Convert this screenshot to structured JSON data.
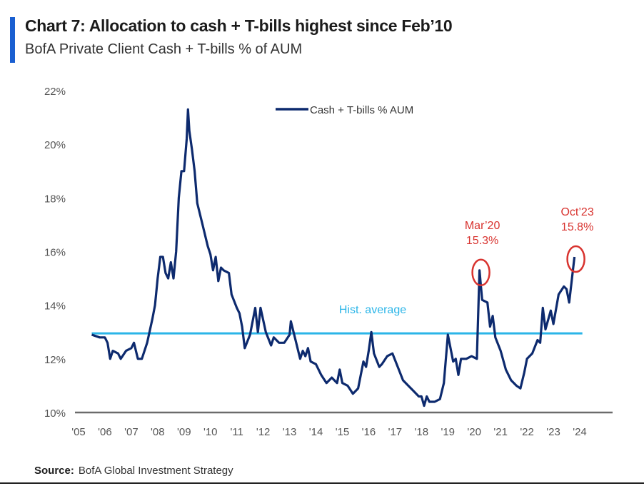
{
  "chart_data": {
    "type": "line",
    "title": "Chart 7: Allocation to cash + T-bills highest since Feb’10",
    "subtitle": "BofA Private Client Cash + T-bills % of AUM",
    "xlabel": "",
    "ylabel": "",
    "xlim": [
      2005,
      2025
    ],
    "ylim": [
      10,
      22
    ],
    "x_ticks": [
      "'05",
      "'06",
      "'07",
      "'08",
      "'09",
      "'10",
      "'11",
      "'12",
      "'13",
      "'14",
      "'15",
      "'16",
      "'17",
      "'18",
      "'19",
      "'20",
      "'21",
      "'22",
      "'23",
      "'24"
    ],
    "y_ticks": [
      "10%",
      "12%",
      "14%",
      "16%",
      "18%",
      "20%",
      "22%"
    ],
    "grid": false,
    "legend_position": "top-center",
    "series": [
      {
        "name": "Cash + T-bills % AUM",
        "color": "#0d2a6e",
        "x": [
          2005.5,
          2005.8,
          2006.0,
          2006.1,
          2006.2,
          2006.3,
          2006.5,
          2006.6,
          2006.8,
          2007.0,
          2007.1,
          2007.25,
          2007.4,
          2007.6,
          2007.8,
          2007.9,
          2008.0,
          2008.1,
          2008.2,
          2008.3,
          2008.4,
          2008.5,
          2008.6,
          2008.7,
          2008.8,
          2008.9,
          2009.0,
          2009.1,
          2009.15,
          2009.2,
          2009.3,
          2009.4,
          2009.5,
          2009.7,
          2009.9,
          2010.0,
          2010.1,
          2010.2,
          2010.3,
          2010.4,
          2010.5,
          2010.7,
          2010.8,
          2011.0,
          2011.1,
          2011.2,
          2011.3,
          2011.5,
          2011.7,
          2011.8,
          2011.9,
          2012.1,
          2012.3,
          2012.4,
          2012.6,
          2012.8,
          2013.0,
          2013.05,
          2013.2,
          2013.4,
          2013.5,
          2013.6,
          2013.7,
          2013.8,
          2014.0,
          2014.2,
          2014.4,
          2014.6,
          2014.8,
          2014.9,
          2015.0,
          2015.2,
          2015.4,
          2015.6,
          2015.8,
          2015.9,
          2016.0,
          2016.1,
          2016.2,
          2016.4,
          2016.5,
          2016.7,
          2016.9,
          2017.1,
          2017.3,
          2017.5,
          2017.7,
          2017.9,
          2018.0,
          2018.1,
          2018.2,
          2018.3,
          2018.5,
          2018.7,
          2018.85,
          2019.0,
          2019.2,
          2019.3,
          2019.4,
          2019.5,
          2019.7,
          2019.9,
          2020.1,
          2020.2,
          2020.3,
          2020.5,
          2020.6,
          2020.7,
          2020.8,
          2021.0,
          2021.2,
          2021.4,
          2021.6,
          2021.75,
          2021.9,
          2022.0,
          2022.2,
          2022.4,
          2022.5,
          2022.6,
          2022.7,
          2022.9,
          2023.0,
          2023.2,
          2023.4,
          2023.5,
          2023.6,
          2023.8
        ],
        "values": [
          12.9,
          12.8,
          12.8,
          12.6,
          12.0,
          12.3,
          12.2,
          12.0,
          12.3,
          12.4,
          12.6,
          12.0,
          12.0,
          12.6,
          13.5,
          14.0,
          15.0,
          15.8,
          15.8,
          15.2,
          15.0,
          15.6,
          15.0,
          16.0,
          18.0,
          19.0,
          19.0,
          20.2,
          21.3,
          20.5,
          19.8,
          19.0,
          17.8,
          17.0,
          16.2,
          15.9,
          15.3,
          15.8,
          14.9,
          15.4,
          15.3,
          15.2,
          14.4,
          13.9,
          13.7,
          13.2,
          12.4,
          12.9,
          13.9,
          13.0,
          13.9,
          13.0,
          12.5,
          12.8,
          12.6,
          12.6,
          12.9,
          13.4,
          12.8,
          12.0,
          12.3,
          12.1,
          12.4,
          11.9,
          11.8,
          11.4,
          11.1,
          11.3,
          11.1,
          11.6,
          11.1,
          11.0,
          10.7,
          10.9,
          11.9,
          11.7,
          12.3,
          13.0,
          12.2,
          11.7,
          11.8,
          12.1,
          12.2,
          11.7,
          11.2,
          11.0,
          10.8,
          10.6,
          10.6,
          10.25,
          10.6,
          10.4,
          10.4,
          10.5,
          11.1,
          12.9,
          11.9,
          12.0,
          11.4,
          12.0,
          12.0,
          12.1,
          12.0,
          15.3,
          14.2,
          14.1,
          13.2,
          13.6,
          12.8,
          12.3,
          11.6,
          11.2,
          11.0,
          10.9,
          11.5,
          12.0,
          12.2,
          12.7,
          12.6,
          13.9,
          13.1,
          13.8,
          13.3,
          14.4,
          14.7,
          14.6,
          14.1,
          15.8
        ]
      }
    ],
    "reference_line": {
      "label": "Hist. average",
      "value": 12.95,
      "color": "#2bb5e8"
    },
    "annotations": [
      {
        "x": 2020.2,
        "y": 15.3,
        "label_line1": "Mar’20",
        "label_line2": "15.3%",
        "color": "#d8332f"
      },
      {
        "x": 2023.8,
        "y": 15.8,
        "label_line1": "Oct’23",
        "label_line2": "15.8%",
        "color": "#d8332f"
      }
    ]
  },
  "source": {
    "label": "Source:",
    "text": "BofA Global Investment Strategy"
  }
}
